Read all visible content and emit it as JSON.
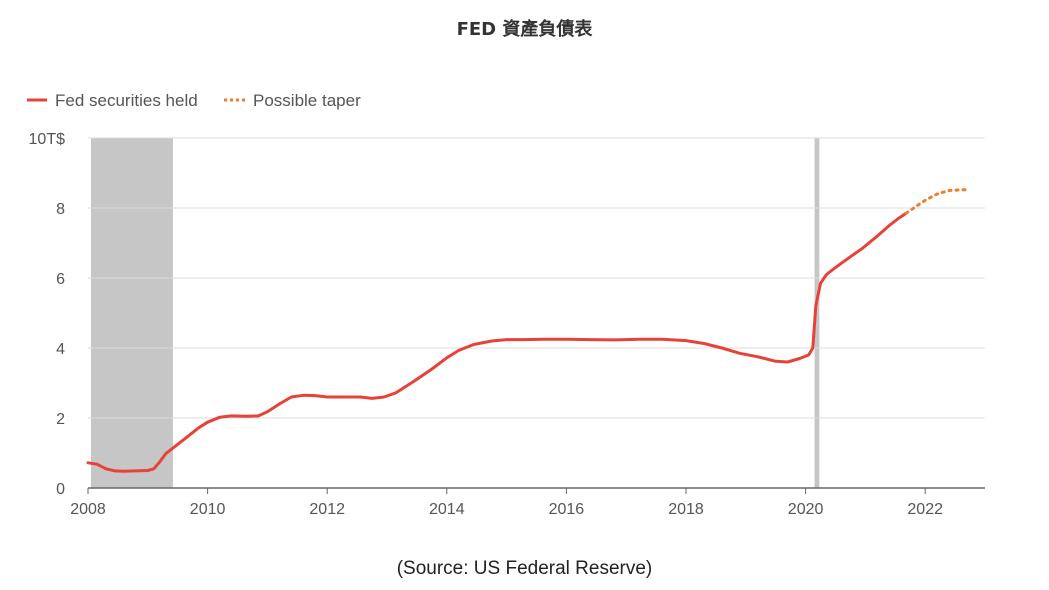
{
  "title": "FED 資產負債表",
  "source": "(Source: US Federal Reserve)",
  "colors": {
    "held": "#e8413a",
    "taper": "#f07d2c",
    "shade": "#c6c6c6",
    "grid": "#dcdcdc",
    "axis": "#666666"
  },
  "chart_data": {
    "type": "line",
    "title": "FED 資產負債表",
    "xlabel": "",
    "ylabel": "",
    "ytick_labels": [
      "0",
      "2",
      "4",
      "6",
      "8",
      "10T$"
    ],
    "xtick_labels": [
      "2008",
      "2010",
      "2012",
      "2014",
      "2016",
      "2018",
      "2020",
      "2022"
    ],
    "yticks": [
      0,
      2,
      4,
      6,
      8,
      10
    ],
    "xticks": [
      2008,
      2010,
      2012,
      2014,
      2016,
      2018,
      2020,
      2022
    ],
    "xlim": [
      2008,
      2023.0
    ],
    "ylim": [
      0,
      10
    ],
    "grid": true,
    "legend_position": "top-left",
    "shaded_periods": [
      {
        "start": 2008.05,
        "end": 2009.42
      },
      {
        "start": 2020.15,
        "end": 2020.23
      }
    ],
    "series": [
      {
        "name": "Fed securities held",
        "style": "solid",
        "x": [
          2008.0,
          2008.15,
          2008.3,
          2008.45,
          2008.6,
          2008.8,
          2009.0,
          2009.1,
          2009.2,
          2009.3,
          2009.45,
          2009.65,
          2009.85,
          2010.0,
          2010.2,
          2010.4,
          2010.65,
          2010.85,
          2011.0,
          2011.2,
          2011.4,
          2011.6,
          2011.8,
          2012.0,
          2012.25,
          2012.55,
          2012.75,
          2012.95,
          2013.15,
          2013.45,
          2013.75,
          2014.0,
          2014.2,
          2014.45,
          2014.75,
          2015.0,
          2015.3,
          2015.6,
          2016.0,
          2016.4,
          2016.8,
          2017.2,
          2017.6,
          2018.0,
          2018.3,
          2018.6,
          2018.9,
          2019.2,
          2019.5,
          2019.7,
          2019.9,
          2020.05,
          2020.12,
          2020.17,
          2020.25,
          2020.35,
          2020.5,
          2020.7,
          2020.95,
          2021.2,
          2021.4,
          2021.55,
          2021.68
        ],
        "values": [
          0.72,
          0.68,
          0.55,
          0.49,
          0.48,
          0.49,
          0.5,
          0.55,
          0.75,
          0.98,
          1.18,
          1.45,
          1.72,
          1.88,
          2.02,
          2.06,
          2.05,
          2.06,
          2.18,
          2.4,
          2.6,
          2.65,
          2.64,
          2.6,
          2.6,
          2.6,
          2.56,
          2.6,
          2.72,
          3.05,
          3.4,
          3.72,
          3.93,
          4.1,
          4.2,
          4.24,
          4.24,
          4.25,
          4.25,
          4.24,
          4.23,
          4.25,
          4.25,
          4.21,
          4.13,
          4.0,
          3.85,
          3.75,
          3.62,
          3.6,
          3.7,
          3.8,
          4.0,
          5.2,
          5.85,
          6.1,
          6.3,
          6.55,
          6.85,
          7.2,
          7.5,
          7.7,
          7.85
        ]
      },
      {
        "name": "Possible taper",
        "style": "dotted",
        "x": [
          2021.68,
          2021.85,
          2022.0,
          2022.2,
          2022.4,
          2022.6,
          2022.75
        ],
        "values": [
          7.85,
          8.05,
          8.22,
          8.4,
          8.5,
          8.52,
          8.52
        ]
      }
    ]
  }
}
